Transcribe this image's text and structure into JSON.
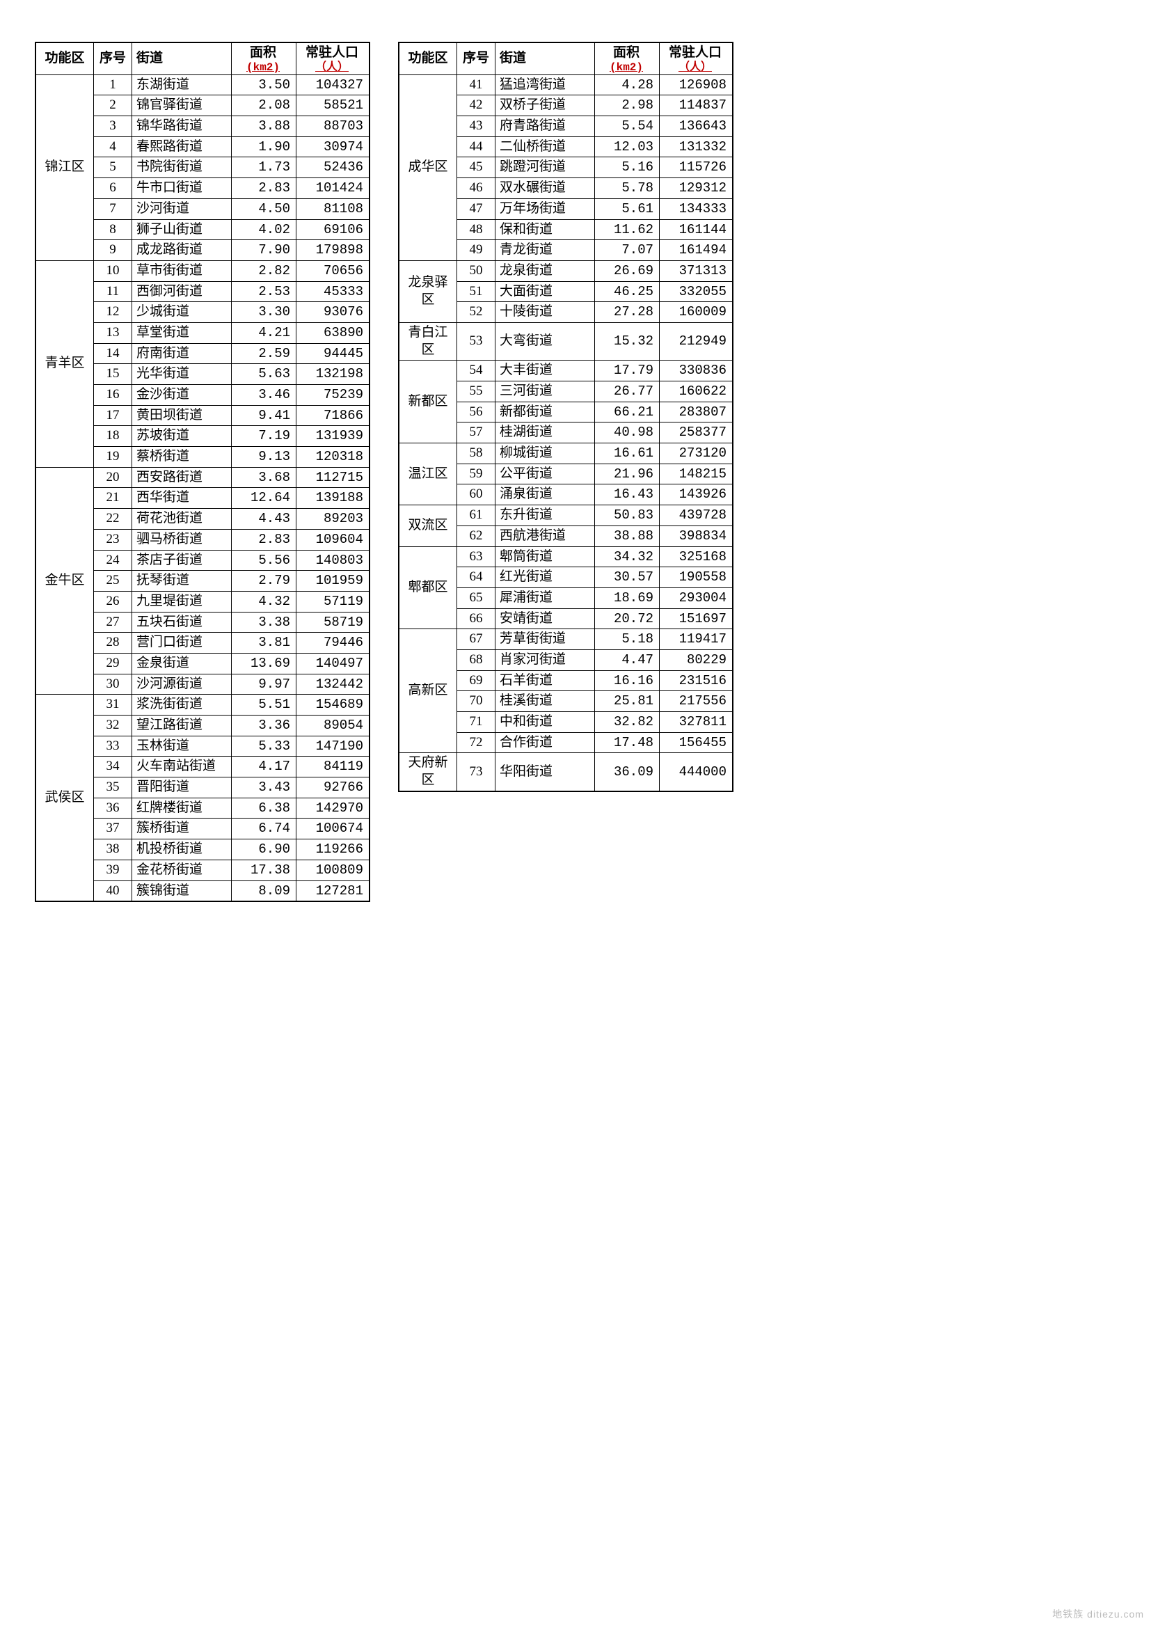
{
  "headers": {
    "fn": "功能区",
    "idx": "序号",
    "name": "街道",
    "area": "面积",
    "area_unit": "(km2)",
    "pop": "常驻人口",
    "pop_unit": "（人）"
  },
  "watermark": "地铁族 ditiezu.com",
  "left": [
    {
      "fn": "锦江区",
      "span": 9,
      "rows": [
        [
          1,
          "东湖街道",
          "3.50",
          "104327"
        ],
        [
          2,
          "锦官驿街道",
          "2.08",
          "58521"
        ],
        [
          3,
          "锦华路街道",
          "3.88",
          "88703"
        ],
        [
          4,
          "春熙路街道",
          "1.90",
          "30974"
        ],
        [
          5,
          "书院街街道",
          "1.73",
          "52436"
        ],
        [
          6,
          "牛市口街道",
          "2.83",
          "101424"
        ],
        [
          7,
          "沙河街道",
          "4.50",
          "81108"
        ],
        [
          8,
          "狮子山街道",
          "4.02",
          "69106"
        ],
        [
          9,
          "成龙路街道",
          "7.90",
          "179898"
        ]
      ]
    },
    {
      "fn": "青羊区",
      "span": 10,
      "rows": [
        [
          10,
          "草市街街道",
          "2.82",
          "70656"
        ],
        [
          11,
          "西御河街道",
          "2.53",
          "45333"
        ],
        [
          12,
          "少城街道",
          "3.30",
          "93076"
        ],
        [
          13,
          "草堂街道",
          "4.21",
          "63890"
        ],
        [
          14,
          "府南街道",
          "2.59",
          "94445"
        ],
        [
          15,
          "光华街道",
          "5.63",
          "132198"
        ],
        [
          16,
          "金沙街道",
          "3.46",
          "75239"
        ],
        [
          17,
          "黄田坝街道",
          "9.41",
          "71866"
        ],
        [
          18,
          "苏坡街道",
          "7.19",
          "131939"
        ],
        [
          19,
          "蔡桥街道",
          "9.13",
          "120318"
        ]
      ]
    },
    {
      "fn": "金牛区",
      "span": 11,
      "rows": [
        [
          20,
          "西安路街道",
          "3.68",
          "112715"
        ],
        [
          21,
          "西华街道",
          "12.64",
          "139188"
        ],
        [
          22,
          "荷花池街道",
          "4.43",
          "89203"
        ],
        [
          23,
          "驷马桥街道",
          "2.83",
          "109604"
        ],
        [
          24,
          "茶店子街道",
          "5.56",
          "140803"
        ],
        [
          25,
          "抚琴街道",
          "2.79",
          "101959"
        ],
        [
          26,
          "九里堤街道",
          "4.32",
          "57119"
        ],
        [
          27,
          "五块石街道",
          "3.38",
          "58719"
        ],
        [
          28,
          "营门口街道",
          "3.81",
          "79446"
        ],
        [
          29,
          "金泉街道",
          "13.69",
          "140497"
        ],
        [
          30,
          "沙河源街道",
          "9.97",
          "132442"
        ]
      ]
    },
    {
      "fn": "武侯区",
      "span": 10,
      "rows": [
        [
          31,
          "浆洗街街道",
          "5.51",
          "154689"
        ],
        [
          32,
          "望江路街道",
          "3.36",
          "89054"
        ],
        [
          33,
          "玉林街道",
          "5.33",
          "147190"
        ],
        [
          34,
          "火车南站街道",
          "4.17",
          "84119"
        ],
        [
          35,
          "晋阳街道",
          "3.43",
          "92766"
        ],
        [
          36,
          "红牌楼街道",
          "6.38",
          "142970"
        ],
        [
          37,
          "簇桥街道",
          "6.74",
          "100674"
        ],
        [
          38,
          "机投桥街道",
          "6.90",
          "119266"
        ],
        [
          39,
          "金花桥街道",
          "17.38",
          "100809"
        ],
        [
          40,
          "簇锦街道",
          "8.09",
          "127281"
        ]
      ]
    }
  ],
  "right": [
    {
      "fn": "成华区",
      "span": 9,
      "rows": [
        [
          41,
          "猛追湾街道",
          "4.28",
          "126908"
        ],
        [
          42,
          "双桥子街道",
          "2.98",
          "114837"
        ],
        [
          43,
          "府青路街道",
          "5.54",
          "136643"
        ],
        [
          44,
          "二仙桥街道",
          "12.03",
          "131332"
        ],
        [
          45,
          "跳蹬河街道",
          "5.16",
          "115726"
        ],
        [
          46,
          "双水碾街道",
          "5.78",
          "129312"
        ],
        [
          47,
          "万年场街道",
          "5.61",
          "134333"
        ],
        [
          48,
          "保和街道",
          "11.62",
          "161144"
        ],
        [
          49,
          "青龙街道",
          "7.07",
          "161494"
        ]
      ]
    },
    {
      "fn": "龙泉驿区",
      "span": 3,
      "rows": [
        [
          50,
          "龙泉街道",
          "26.69",
          "371313"
        ],
        [
          51,
          "大面街道",
          "46.25",
          "332055"
        ],
        [
          52,
          "十陵街道",
          "27.28",
          "160009"
        ]
      ]
    },
    {
      "fn": "青白江区",
      "span": 1,
      "rows": [
        [
          53,
          "大弯街道",
          "15.32",
          "212949"
        ]
      ]
    },
    {
      "fn": "新都区",
      "span": 4,
      "rows": [
        [
          54,
          "大丰街道",
          "17.79",
          "330836"
        ],
        [
          55,
          "三河街道",
          "26.77",
          "160622"
        ],
        [
          56,
          "新都街道",
          "66.21",
          "283807"
        ],
        [
          57,
          "桂湖街道",
          "40.98",
          "258377"
        ]
      ]
    },
    {
      "fn": "温江区",
      "span": 3,
      "rows": [
        [
          58,
          "柳城街道",
          "16.61",
          "273120"
        ],
        [
          59,
          "公平街道",
          "21.96",
          "148215"
        ],
        [
          60,
          "涌泉街道",
          "16.43",
          "143926"
        ]
      ]
    },
    {
      "fn": "双流区",
      "span": 2,
      "rows": [
        [
          61,
          "东升街道",
          "50.83",
          "439728"
        ],
        [
          62,
          "西航港街道",
          "38.88",
          "398834"
        ]
      ]
    },
    {
      "fn": "郫都区",
      "span": 4,
      "rows": [
        [
          63,
          "郫筒街道",
          "34.32",
          "325168"
        ],
        [
          64,
          "红光街道",
          "30.57",
          "190558"
        ],
        [
          65,
          "犀浦街道",
          "18.69",
          "293004"
        ],
        [
          66,
          "安靖街道",
          "20.72",
          "151697"
        ]
      ]
    },
    {
      "fn": "高新区",
      "span": 6,
      "rows": [
        [
          67,
          "芳草街街道",
          "5.18",
          "119417"
        ],
        [
          68,
          "肖家河街道",
          "4.47",
          "80229"
        ],
        [
          69,
          "石羊街道",
          "16.16",
          "231516"
        ],
        [
          70,
          "桂溪街道",
          "25.81",
          "217556"
        ],
        [
          71,
          "中和街道",
          "32.82",
          "327811"
        ],
        [
          72,
          "合作街道",
          "17.48",
          "156455"
        ]
      ]
    },
    {
      "fn": "天府新区",
      "span": 1,
      "rows": [
        [
          73,
          "华阳街道",
          "36.09",
          "444000"
        ]
      ]
    }
  ]
}
